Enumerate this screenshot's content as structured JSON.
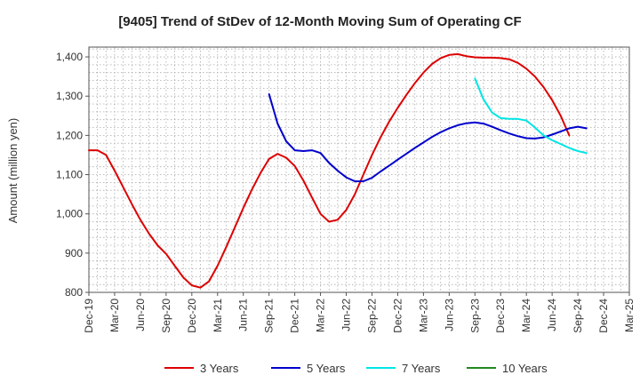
{
  "chart_data": {
    "type": "line",
    "title": "[9405]  Trend of StDev of 12-Month Moving Sum of Operating CF",
    "ylabel": "Amount (million yen)",
    "xlabel": "",
    "ylim": [
      800,
      1425
    ],
    "yticks": [
      800,
      900,
      1000,
      1100,
      1200,
      1300,
      1400
    ],
    "ytick_labels": [
      "800",
      "900",
      "1,000",
      "1,100",
      "1,200",
      "1,300",
      "1,400"
    ],
    "xlim": [
      0,
      63
    ],
    "xtick_positions": [
      0,
      3,
      6,
      9,
      12,
      15,
      18,
      21,
      24,
      27,
      30,
      33,
      36,
      39,
      42,
      45,
      48,
      51,
      54,
      57,
      60,
      63
    ],
    "xtick_labels": [
      "Dec-19",
      "Mar-20",
      "Jun-20",
      "Sep-20",
      "Dec-20",
      "Mar-21",
      "Jun-21",
      "Sep-21",
      "Dec-21",
      "Mar-22",
      "Jun-22",
      "Sep-22",
      "Dec-22",
      "Mar-23",
      "Jun-23",
      "Sep-23",
      "Dec-23",
      "Mar-24",
      "Jun-24",
      "Sep-24",
      "Dec-24",
      "Mar-25"
    ],
    "grid": true,
    "legend_position": "bottom",
    "series": [
      {
        "name": "3 Years",
        "color": "#dd0000",
        "start_index": 0,
        "values": [
          1162,
          1162,
          1150,
          1110,
          1068,
          1025,
          985,
          950,
          920,
          898,
          868,
          838,
          818,
          812,
          828,
          868,
          915,
          965,
          1015,
          1062,
          1104,
          1140,
          1153,
          1143,
          1122,
          1085,
          1042,
          1000,
          980,
          985,
          1010,
          1050,
          1100,
          1150,
          1195,
          1235,
          1270,
          1303,
          1333,
          1360,
          1382,
          1397,
          1405,
          1407,
          1402,
          1399,
          1398,
          1398,
          1397,
          1394,
          1385,
          1370,
          1350,
          1323,
          1290,
          1250,
          1200
        ]
      },
      {
        "name": "5 Years",
        "color": "#0000cc",
        "start_index": 21,
        "values": [
          1305,
          1230,
          1185,
          1162,
          1160,
          1162,
          1155,
          1130,
          1110,
          1093,
          1083,
          1083,
          1092,
          1108,
          1123,
          1138,
          1153,
          1168,
          1182,
          1196,
          1208,
          1218,
          1226,
          1231,
          1233,
          1230,
          1222,
          1213,
          1205,
          1198,
          1193,
          1192,
          1195,
          1202,
          1210,
          1218,
          1222,
          1218
        ]
      },
      {
        "name": "7 Years",
        "color": "#00e5e5",
        "start_index": 45,
        "values": [
          1345,
          1292,
          1258,
          1244,
          1242,
          1242,
          1238,
          1220,
          1200,
          1188,
          1178,
          1168,
          1160,
          1155
        ]
      },
      {
        "name": "10 Years",
        "color": "#228822",
        "start_index": 0,
        "values": []
      }
    ]
  }
}
